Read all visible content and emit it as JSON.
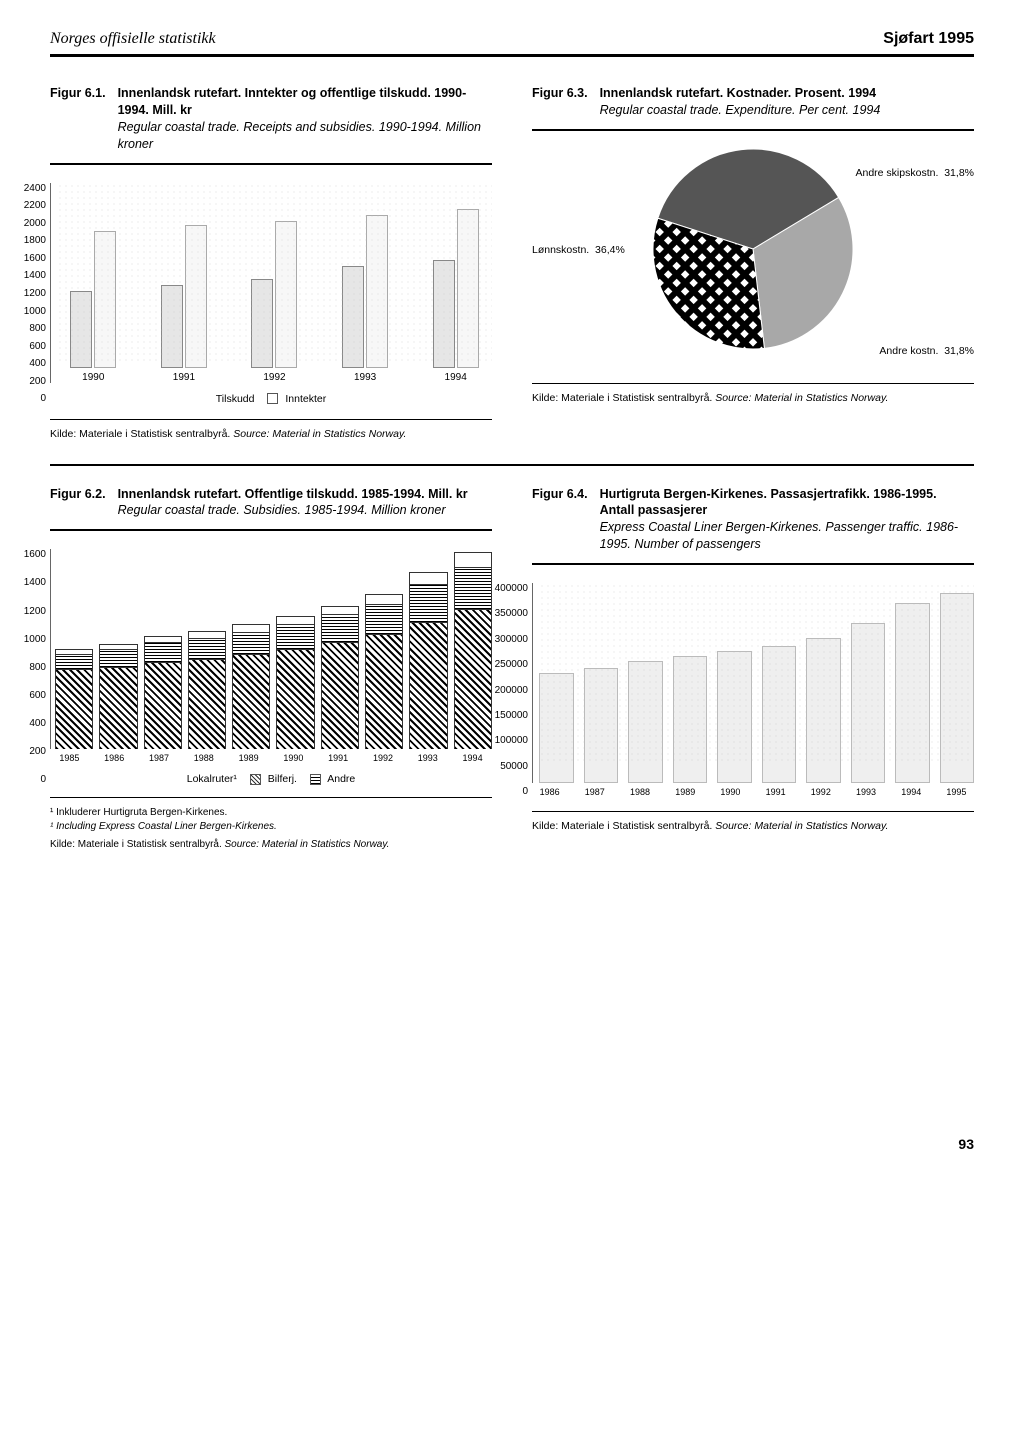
{
  "header": {
    "left": "Norges offisielle statistikk",
    "right": "Sjøfart 1995"
  },
  "fig61": {
    "num": "Figur 6.1.",
    "title_bold": "Innenlandsk rutefart. Inntekter og offentlige tilskudd. 1990-1994. Mill. kr",
    "title_it": "Regular coastal trade. Receipts and subsidies. 1990-1994. Million kroner",
    "ylabels": [
      "2400",
      "2200",
      "2000",
      "1800",
      "1600",
      "1400",
      "1200",
      "1000",
      "800",
      "600",
      "400",
      "200",
      "0"
    ],
    "years": [
      "1990",
      "1991",
      "1992",
      "1993",
      "1994"
    ],
    "tilskudd": [
      1020,
      1100,
      1180,
      1350,
      1440
    ],
    "inntekter": [
      1820,
      1900,
      1960,
      2040,
      2120
    ],
    "ymax": 2400,
    "legend_a": "Tilskudd",
    "legend_b": "Inntekter",
    "bar_fill_a": "#e6e6e6",
    "bar_fill_b": "#f7f7f7",
    "kilde": "Kilde: Materiale i Statistisk sentralbyrå.",
    "kilde_it": "Source: Material in Statistics Norway."
  },
  "fig63": {
    "num": "Figur 6.3.",
    "title_bold": "Innenlandsk rutefart. Kostnader. Prosent. 1994",
    "title_it": "Regular coastal trade. Expenditure. Per cent. 1994",
    "slices": [
      {
        "label": "Lønnskostn.",
        "pct": "36,4%",
        "value": 36.4,
        "color": "#555555"
      },
      {
        "label": "Andre skipskostn.",
        "pct": "31,8%",
        "value": 31.8,
        "color": "#a8a8a8"
      },
      {
        "label": "Andre kostn.",
        "pct": "31,8%",
        "value": 31.8,
        "color": "#000000",
        "pattern": true
      }
    ],
    "kilde": "Kilde: Materiale i Statistisk sentralbyrå.",
    "kilde_it": "Source: Material in Statistics Norway."
  },
  "fig62": {
    "num": "Figur 6.2.",
    "title_bold": "Innenlandsk rutefart. Offentlige tilskudd. 1985-1994. Mill. kr",
    "title_it": "Regular coastal trade. Subsidies. 1985-1994. Million kroner",
    "ylabels": [
      "1600",
      "1400",
      "1200",
      "1000",
      "800",
      "600",
      "400",
      "200",
      "0"
    ],
    "ymax": 1600,
    "years": [
      "1985",
      "1986",
      "1987",
      "1988",
      "1989",
      "1990",
      "1991",
      "1992",
      "1993",
      "1994"
    ],
    "series": {
      "lokalruter": [
        640,
        660,
        700,
        720,
        760,
        800,
        860,
        920,
        1020,
        1120
      ],
      "bilferj": [
        120,
        140,
        160,
        170,
        180,
        200,
        220,
        240,
        300,
        340
      ],
      "andre": [
        40,
        45,
        50,
        55,
        60,
        65,
        70,
        80,
        100,
        120
      ]
    },
    "legend": {
      "lok": "Lokalruter¹",
      "bil": "Bilferj.",
      "and": "Andre"
    },
    "foot1": "¹ Inkluderer Hurtigruta Bergen-Kirkenes.",
    "foot1_it": "¹ Including Express Coastal Liner Bergen-Kirkenes.",
    "kilde": "Kilde: Materiale i Statistisk sentralbyrå.",
    "kilde_it": "Source: Material in Statistics Norway."
  },
  "fig64": {
    "num": "Figur 6.4.",
    "title_bold": "Hurtigruta Bergen-Kirkenes. Passasjertrafikk. 1986-1995. Antall passasjerer",
    "title_it": "Express Coastal Liner Bergen-Kirkenes. Passenger traffic. 1986-1995. Number of passengers",
    "ylabels": [
      "400000",
      "350000",
      "300000",
      "250000",
      "200000",
      "150000",
      "100000",
      "50000",
      "0"
    ],
    "ymax": 400000,
    "years": [
      "1986",
      "1987",
      "1988",
      "1989",
      "1990",
      "1991",
      "1992",
      "1993",
      "1994",
      "1995"
    ],
    "values": [
      220000,
      230000,
      245000,
      255000,
      265000,
      275000,
      290000,
      320000,
      360000,
      380000
    ],
    "kilde": "Kilde: Materiale i Statistisk sentralbyrå.",
    "kilde_it": "Source: Material in Statistics Norway."
  },
  "pagenum": "93"
}
